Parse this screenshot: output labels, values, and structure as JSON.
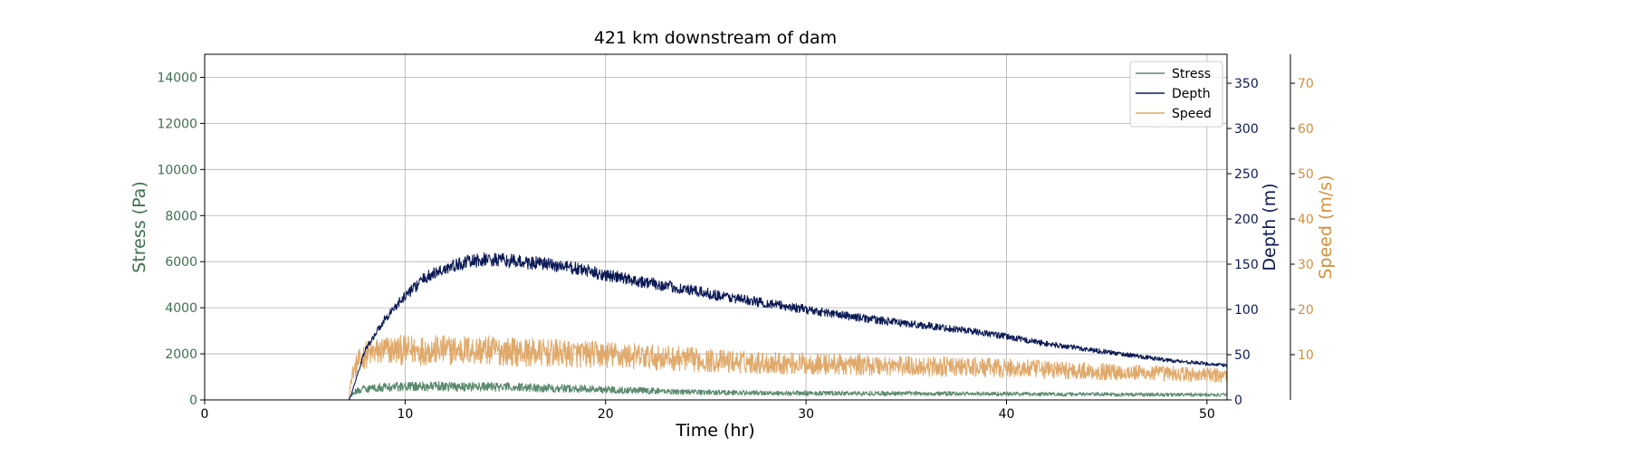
{
  "chart_data": {
    "type": "line",
    "title": "421 km downstream of dam",
    "xlabel": "Time (hr)",
    "xlim": [
      0,
      51
    ],
    "x_ticks": [
      0,
      10,
      20,
      30,
      40,
      50
    ],
    "grid": true,
    "legend_position": "top-right",
    "axes": [
      {
        "id": "stress",
        "label": "Stress (Pa)",
        "side": "left",
        "color": "#3f7050",
        "ylim": [
          0,
          15000
        ],
        "ticks": [
          0,
          2000,
          4000,
          6000,
          8000,
          10000,
          12000,
          14000
        ]
      },
      {
        "id": "depth",
        "label": "Depth (m)",
        "side": "right",
        "color": "#0b1a55",
        "ylim": [
          0,
          382
        ],
        "ticks": [
          0,
          50,
          100,
          150,
          200,
          250,
          300,
          350
        ]
      },
      {
        "id": "speed",
        "label": "Speed (m/s)",
        "side": "right-outer",
        "color": "#d48f3c",
        "ylim": [
          0,
          76.4
        ],
        "ticks": [
          10,
          20,
          30,
          40,
          50,
          60,
          70
        ]
      }
    ],
    "series": [
      {
        "name": "Stress",
        "axis": "stress",
        "color": "#5a8a6e",
        "noise": 0.35,
        "x": [
          0,
          7.2,
          7.3,
          7.6,
          8,
          9,
          10,
          12,
          14,
          16,
          18,
          20,
          22,
          24,
          26,
          28,
          30,
          35,
          40,
          45,
          50,
          51
        ],
        "y": [
          0,
          0,
          200,
          400,
          500,
          550,
          580,
          590,
          570,
          550,
          500,
          450,
          400,
          350,
          320,
          300,
          290,
          280,
          260,
          240,
          220,
          210
        ]
      },
      {
        "name": "Depth",
        "axis": "depth",
        "color": "#0b1a55",
        "noise": 0.05,
        "x": [
          0,
          7.2,
          7.3,
          8,
          9,
          10,
          11,
          12,
          13,
          14,
          15,
          16,
          17,
          18,
          19,
          20,
          22,
          24,
          26,
          28,
          30,
          32,
          34,
          36,
          38,
          40,
          42,
          44,
          46,
          48,
          50,
          51
        ],
        "y": [
          0,
          0,
          5,
          55,
          90,
          115,
          135,
          145,
          152,
          155,
          154,
          152,
          150,
          147,
          143,
          138,
          130,
          122,
          114,
          107,
          100,
          93,
          87,
          82,
          77,
          70,
          62,
          56,
          50,
          44,
          40,
          38
        ]
      },
      {
        "name": "Speed",
        "axis": "speed",
        "color": "#e0a96a",
        "noise": 0.3,
        "x": [
          0,
          7.2,
          7.3,
          7.6,
          8,
          9,
          10,
          12,
          14,
          16,
          18,
          20,
          22,
          24,
          26,
          28,
          30,
          32,
          34,
          36,
          38,
          40,
          42,
          44,
          46,
          48,
          50,
          51
        ],
        "y": [
          0,
          0,
          5,
          8,
          10,
          11,
          11,
          11,
          11,
          10.5,
          10.2,
          10,
          9.5,
          9,
          8.5,
          8.2,
          8,
          7.8,
          7.6,
          7.4,
          7.2,
          7,
          6.7,
          6.4,
          6.1,
          5.8,
          5.5,
          5.4
        ]
      }
    ]
  }
}
